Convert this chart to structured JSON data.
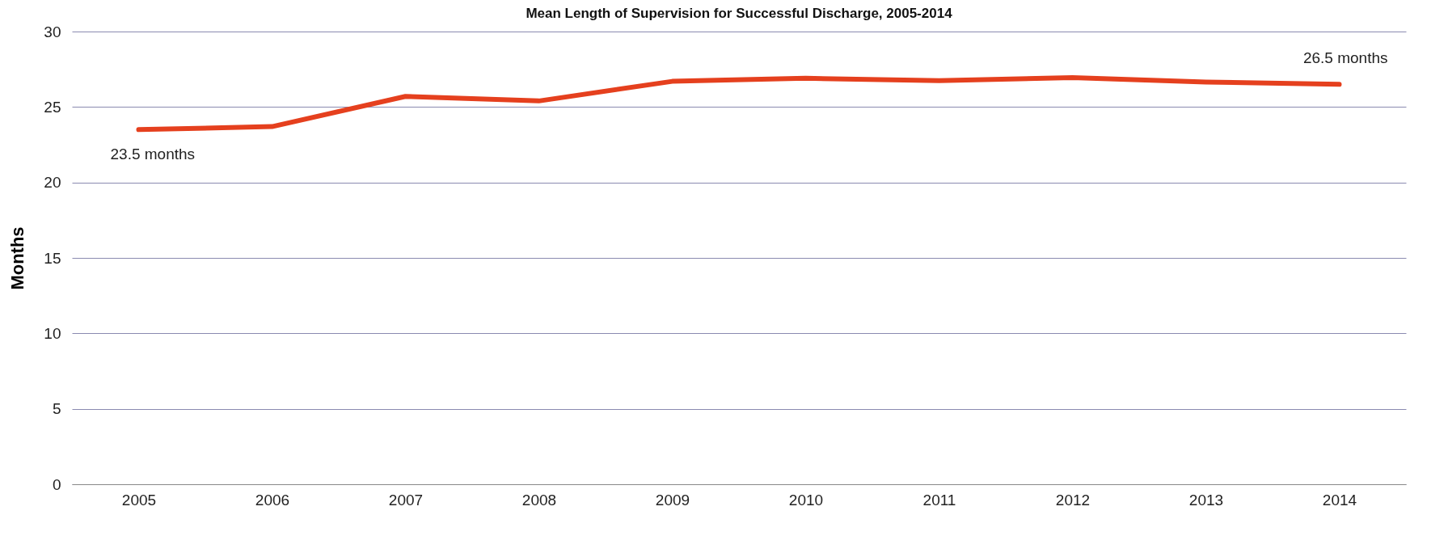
{
  "chart_data": {
    "type": "line",
    "title": "Mean Length of Supervision for Successful Discharge, 2005-2014",
    "ylabel": "Months",
    "categories": [
      "2005",
      "2006",
      "2007",
      "2008",
      "2009",
      "2010",
      "2011",
      "2012",
      "2013",
      "2014"
    ],
    "series": [
      {
        "color": "#e5401e",
        "values": [
          23.5,
          23.7,
          25.7,
          25.4,
          26.7,
          26.9,
          26.75,
          26.95,
          26.65,
          26.5
        ]
      }
    ],
    "ylim": [
      0,
      30
    ],
    "yticks": [
      0,
      5,
      10,
      15,
      20,
      25,
      30
    ],
    "grid": "y",
    "marker": "none",
    "line_style": "solid",
    "annotations": [
      {
        "text": "23.5 months",
        "x": "2005",
        "y": 23.5
      },
      {
        "text": "26.5 months",
        "x": "2014",
        "y": 26.5
      }
    ]
  }
}
